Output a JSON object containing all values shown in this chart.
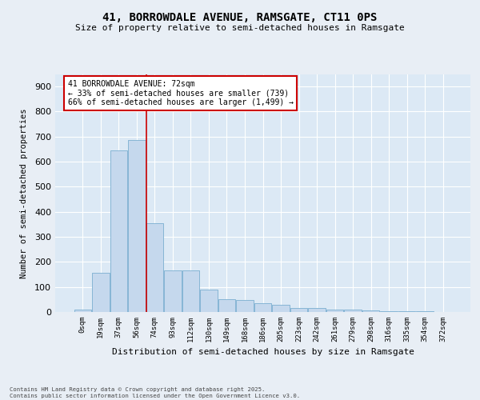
{
  "title_line1": "41, BORROWDALE AVENUE, RAMSGATE, CT11 0PS",
  "title_line2": "Size of property relative to semi-detached houses in Ramsgate",
  "xlabel": "Distribution of semi-detached houses by size in Ramsgate",
  "ylabel": "Number of semi-detached properties",
  "bar_color": "#c5d8ed",
  "bar_edge_color": "#7aaed0",
  "background_color": "#dce9f5",
  "grid_color": "#ffffff",
  "annotation_box_color": "#cc0000",
  "vline_color": "#cc0000",
  "fig_background": "#e8eef5",
  "categories": [
    "0sqm",
    "19sqm",
    "37sqm",
    "56sqm",
    "74sqm",
    "93sqm",
    "112sqm",
    "130sqm",
    "149sqm",
    "168sqm",
    "186sqm",
    "205sqm",
    "223sqm",
    "242sqm",
    "261sqm",
    "279sqm",
    "298sqm",
    "316sqm",
    "335sqm",
    "354sqm",
    "372sqm"
  ],
  "values": [
    10,
    155,
    645,
    685,
    355,
    165,
    165,
    88,
    50,
    48,
    35,
    28,
    15,
    15,
    10,
    10,
    7,
    4,
    4,
    2,
    0
  ],
  "annotation_text": "41 BORROWDALE AVENUE: 72sqm\n← 33% of semi-detached houses are smaller (739)\n66% of semi-detached houses are larger (1,499) →",
  "footer_text": "Contains HM Land Registry data © Crown copyright and database right 2025.\nContains public sector information licensed under the Open Government Licence v3.0.",
  "ylim": [
    0,
    950
  ],
  "yticks": [
    0,
    100,
    200,
    300,
    400,
    500,
    600,
    700,
    800,
    900
  ],
  "vline_x": 3.55
}
